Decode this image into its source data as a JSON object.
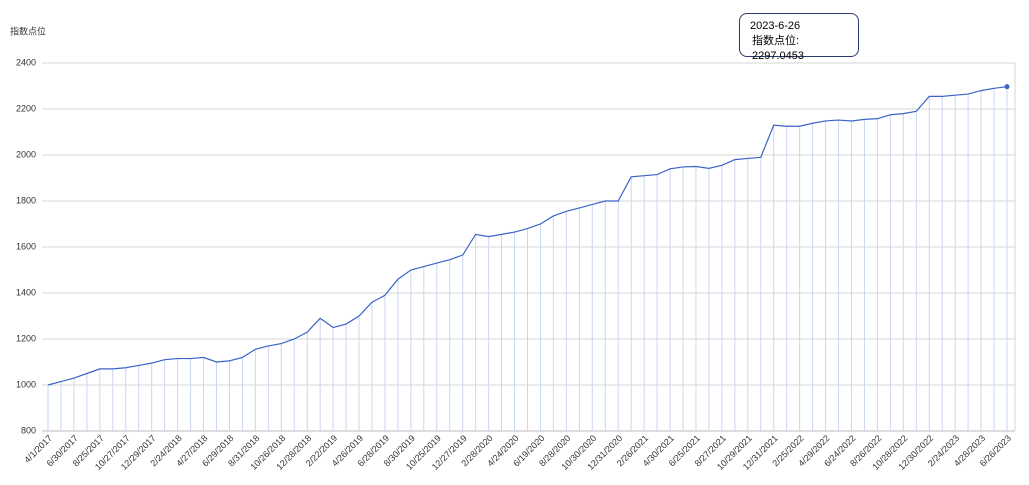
{
  "chart_data": {
    "type": "line",
    "y_axis_label": "指数点位",
    "tooltip": {
      "date": "2023-6-26",
      "text": "指数点位: 2297.0453"
    },
    "categories": [
      "4/1/2017",
      null,
      "6/30/2017",
      null,
      "8/25/2017",
      null,
      "10/27/2017",
      null,
      "12/29/2017",
      null,
      "2/24/2018",
      null,
      "4/27/2018",
      null,
      "6/29/2018",
      null,
      "8/31/2018",
      null,
      "10/26/2018",
      null,
      "12/28/2018",
      null,
      "2/22/2019",
      null,
      "4/26/2019",
      null,
      "6/28/2019",
      null,
      "8/30/2019",
      null,
      "10/25/2019",
      null,
      "12/27/2019",
      null,
      "2/28/2020",
      null,
      "4/24/2020",
      null,
      "6/19/2020",
      null,
      "8/28/2020",
      null,
      "10/30/2020",
      null,
      "12/31/2020",
      null,
      "2/26/2021",
      null,
      "4/30/2021",
      null,
      "6/25/2021",
      null,
      "8/27/2021",
      null,
      "10/29/2021",
      null,
      "12/31/2021",
      null,
      "2/25/2022",
      null,
      "4/29/2022",
      null,
      "6/24/2022",
      null,
      "8/26/2022",
      null,
      "10/28/2022",
      null,
      "12/30/2022",
      null,
      "2/24/2023",
      null,
      "4/28/2023",
      null,
      "6/26/2023"
    ],
    "series": [
      {
        "color": "#3b64c8",
        "values": [
          1000,
          1015,
          1030,
          1050,
          1070,
          1070,
          1075,
          1085,
          1095,
          1110,
          1115,
          1115,
          1120,
          1100,
          1105,
          1120,
          1155,
          1170,
          1180,
          1200,
          1230,
          1290,
          1250,
          1265,
          1300,
          1360,
          1390,
          1460,
          1500,
          1515,
          1530,
          1545,
          1565,
          1655,
          1645,
          1655,
          1665,
          1680,
          1700,
          1735,
          1755,
          1770,
          1785,
          1800,
          1800,
          1905,
          1910,
          1915,
          1940,
          1948,
          1950,
          1942,
          1955,
          1980,
          1985,
          1990,
          2130,
          2125,
          2125,
          2138,
          2148,
          2152,
          2148,
          2155,
          2158,
          2175,
          2180,
          2190,
          2255,
          2255,
          2260,
          2265,
          2280,
          2290,
          2297.0453
        ]
      }
    ],
    "ylim": [
      800,
      2400
    ],
    "yticks": [
      800,
      1000,
      1200,
      1400,
      1600,
      1800,
      2000,
      2200,
      2400
    ],
    "grid": true
  }
}
